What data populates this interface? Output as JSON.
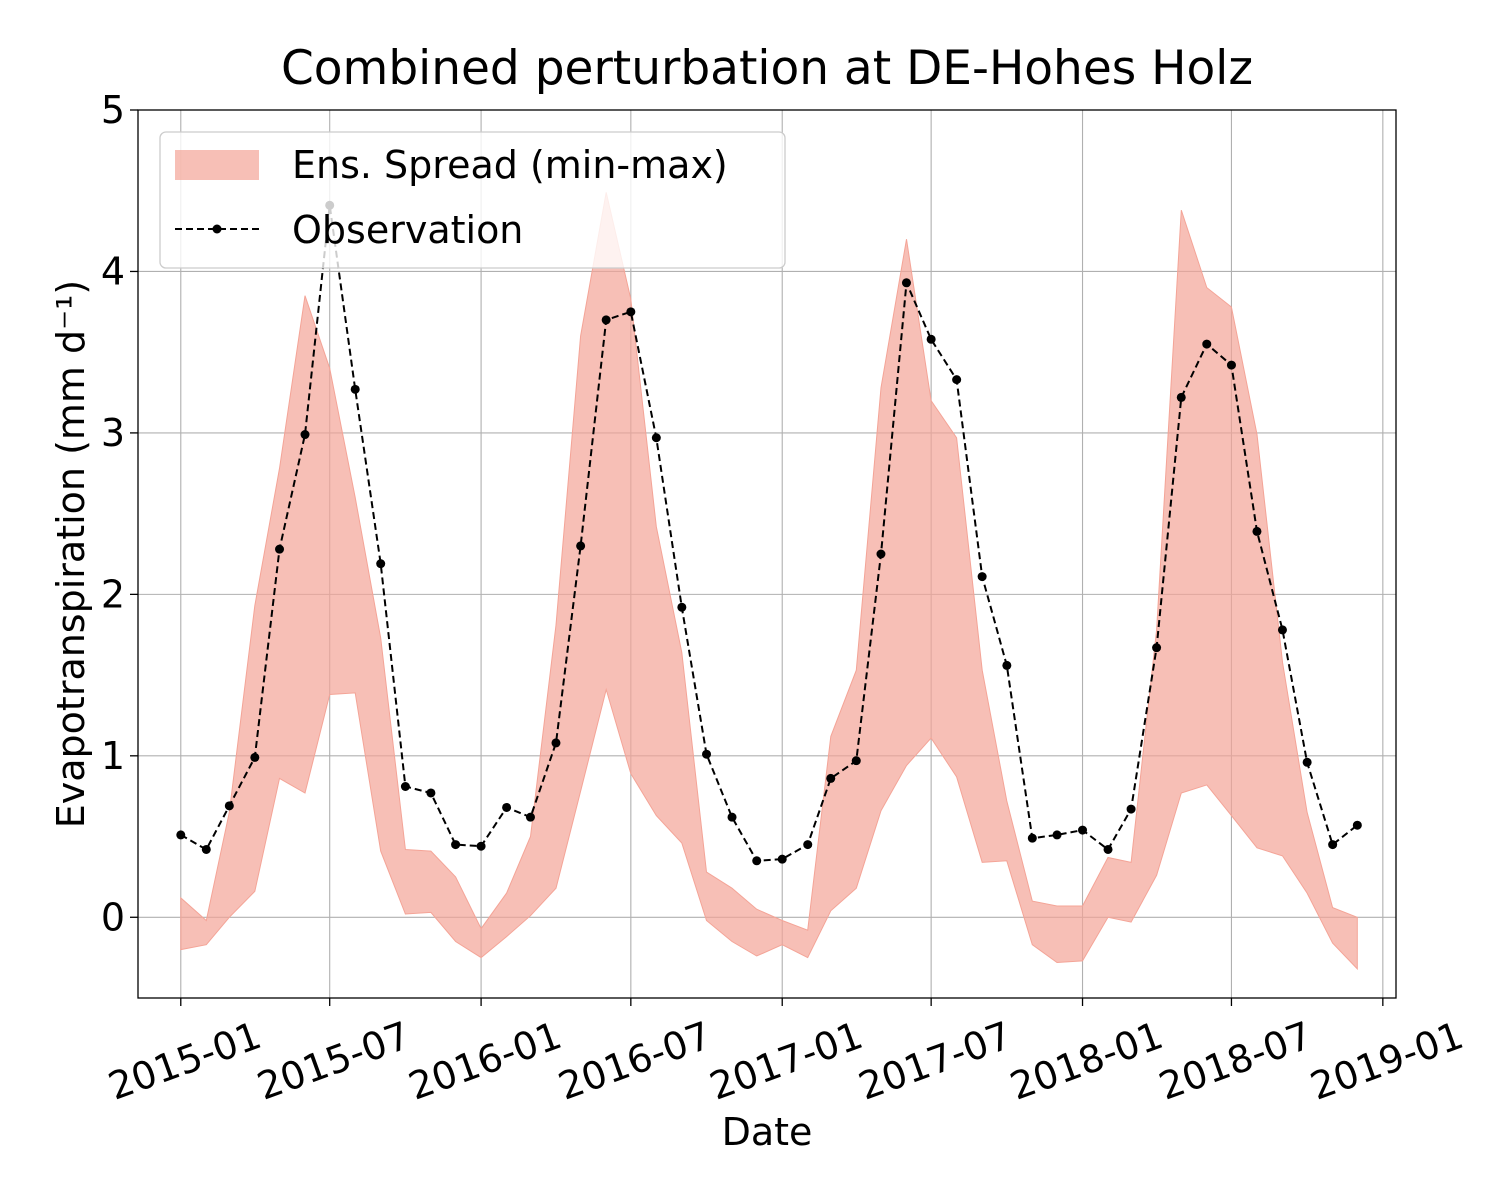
{
  "chart_data": {
    "type": "area",
    "title": "Combined perturbation at DE-Hohes Holz",
    "xlabel": "Date",
    "ylabel": "Evapotranspiration  (mm d⁻¹)",
    "ylim": [
      -0.5,
      5
    ],
    "xlim": [
      "2014-11-10",
      "2019-01-17"
    ],
    "grid": true,
    "legend_position": "top-left",
    "x_ticks": [
      "2015-01",
      "2015-07",
      "2016-01",
      "2016-07",
      "2017-01",
      "2017-07",
      "2018-01",
      "2018-07",
      "2019-01"
    ],
    "y_ticks": [
      0,
      1,
      2,
      3,
      4,
      5
    ],
    "x": [
      "2015-01",
      "2015-02",
      "2015-03",
      "2015-04",
      "2015-05",
      "2015-06",
      "2015-07",
      "2015-08",
      "2015-09",
      "2015-10",
      "2015-11",
      "2015-12",
      "2016-01",
      "2016-02",
      "2016-03",
      "2016-04",
      "2016-05",
      "2016-06",
      "2016-07",
      "2016-08",
      "2016-09",
      "2016-10",
      "2016-11",
      "2016-12",
      "2017-01",
      "2017-02",
      "2017-03",
      "2017-04",
      "2017-05",
      "2017-06",
      "2017-07",
      "2017-08",
      "2017-09",
      "2017-10",
      "2017-11",
      "2017-12",
      "2018-01",
      "2018-02",
      "2018-03",
      "2018-04",
      "2018-05",
      "2018-06",
      "2018-07",
      "2018-08",
      "2018-09",
      "2018-10",
      "2018-11",
      "2018-12"
    ],
    "series": [
      {
        "name": "Ens. Spread (min-max)",
        "kind": "band",
        "color": "#f4a497",
        "upper": [
          0.12,
          -0.02,
          0.65,
          1.93,
          2.78,
          3.85,
          3.4,
          2.6,
          1.73,
          0.42,
          0.41,
          0.25,
          -0.07,
          0.15,
          0.5,
          1.81,
          3.6,
          4.49,
          3.83,
          2.42,
          1.64,
          0.28,
          0.18,
          0.05,
          -0.02,
          -0.08,
          1.12,
          1.53,
          3.28,
          4.2,
          3.2,
          2.97,
          1.53,
          0.72,
          0.1,
          0.07,
          0.07,
          0.37,
          0.34,
          1.78,
          4.38,
          3.9,
          3.78,
          2.99,
          1.58,
          0.65,
          0.06,
          0.0
        ],
        "lower": [
          -0.2,
          -0.17,
          0.0,
          0.16,
          0.86,
          0.77,
          1.38,
          1.39,
          0.41,
          0.02,
          0.03,
          -0.15,
          -0.25,
          -0.12,
          0.01,
          0.18,
          0.78,
          1.41,
          0.89,
          0.63,
          0.46,
          -0.02,
          -0.15,
          -0.24,
          -0.17,
          -0.25,
          0.04,
          0.18,
          0.66,
          0.94,
          1.11,
          0.87,
          0.34,
          0.35,
          -0.17,
          -0.28,
          -0.27,
          0.0,
          -0.03,
          0.26,
          0.77,
          0.82,
          0.63,
          0.43,
          0.38,
          0.15,
          -0.16,
          -0.32
        ]
      },
      {
        "name": "Observation",
        "kind": "line",
        "color": "#000000",
        "values": [
          0.51,
          0.42,
          0.69,
          0.99,
          2.28,
          2.99,
          4.41,
          3.27,
          2.19,
          0.81,
          0.77,
          0.45,
          0.44,
          0.68,
          0.62,
          1.08,
          2.3,
          3.7,
          3.75,
          2.97,
          1.92,
          1.01,
          0.62,
          0.35,
          0.36,
          0.45,
          0.86,
          0.97,
          2.25,
          3.93,
          3.58,
          3.33,
          2.11,
          1.56,
          0.49,
          0.51,
          0.54,
          0.42,
          0.67,
          1.67,
          3.22,
          3.55,
          3.42,
          2.39,
          1.78,
          0.96,
          0.45,
          0.57
        ]
      }
    ]
  }
}
